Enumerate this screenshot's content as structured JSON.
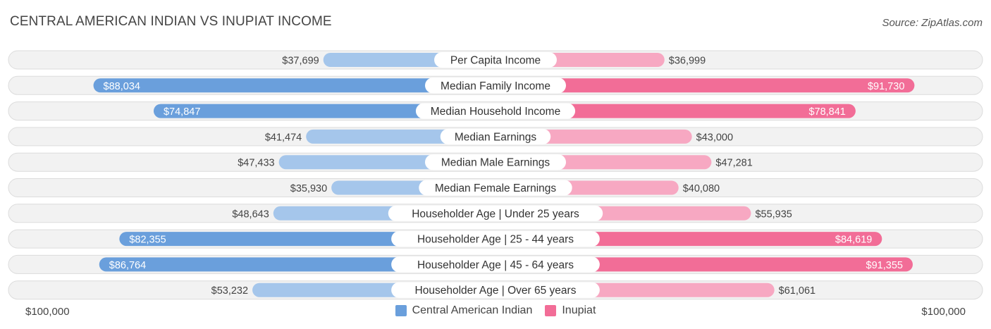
{
  "header": {
    "title": "CENTRAL AMERICAN INDIAN VS INUPIAT INCOME",
    "source": "Source: ZipAtlas.com"
  },
  "axis": {
    "left_label": "$100,000",
    "right_label": "$100,000"
  },
  "legend": {
    "left": {
      "label": "Central American Indian",
      "color": "#6a9fdc"
    },
    "right": {
      "label": "Inupiat",
      "color": "#f26d97"
    }
  },
  "chart_data": {
    "type": "bar",
    "title": "CENTRAL AMERICAN INDIAN VS INUPIAT INCOME",
    "xlim": [
      0,
      100000
    ],
    "categories": [
      "Per Capita Income",
      "Median Family Income",
      "Median Household Income",
      "Median Earnings",
      "Median Male Earnings",
      "Median Female Earnings",
      "Householder Age | Under 25 years",
      "Householder Age | 25 - 44 years",
      "Householder Age | 45 - 64 years",
      "Householder Age | Over 65 years"
    ],
    "series": [
      {
        "name": "Central American Indian",
        "values": [
          37699,
          88034,
          74847,
          41474,
          47433,
          35930,
          48643,
          82355,
          86764,
          53232
        ],
        "labels": [
          "$37,699",
          "$88,034",
          "$74,847",
          "$41,474",
          "$47,433",
          "$35,930",
          "$48,643",
          "$82,355",
          "$86,764",
          "$53,232"
        ]
      },
      {
        "name": "Inupiat",
        "values": [
          36999,
          91730,
          78841,
          43000,
          47281,
          40080,
          55935,
          84619,
          91355,
          61061
        ],
        "labels": [
          "$36,999",
          "$91,730",
          "$78,841",
          "$43,000",
          "$47,281",
          "$40,080",
          "$55,935",
          "$84,619",
          "$91,355",
          "$61,061"
        ]
      }
    ]
  }
}
